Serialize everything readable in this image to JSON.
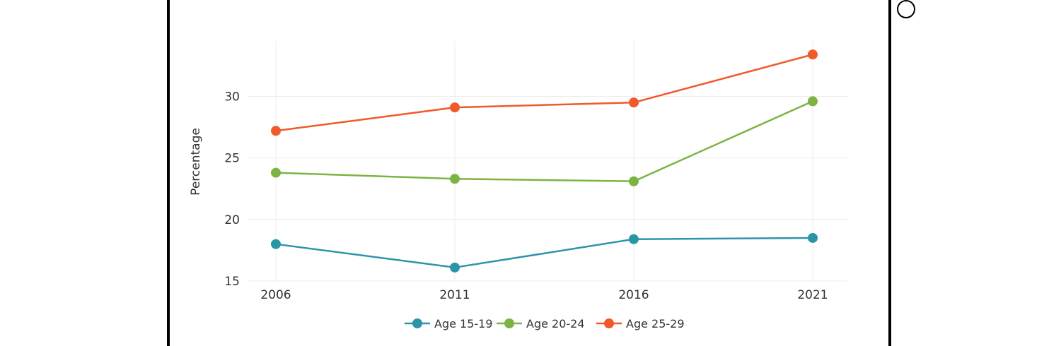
{
  "chart_data": {
    "type": "line",
    "x": [
      2006,
      2011,
      2016,
      2021
    ],
    "x_tick_labels": [
      "2006",
      "2011",
      "2016",
      "2021"
    ],
    "ylabel": "Percentage",
    "xlabel": "",
    "ylim": [
      15,
      34.5
    ],
    "y_ticks": [
      15,
      20,
      25,
      30
    ],
    "y_tick_labels": [
      "15",
      "20",
      "25",
      "30"
    ],
    "grid": true,
    "legend_position": "bottom",
    "series": [
      {
        "name": "Age 15-19",
        "color": "#2b95a8",
        "values": [
          18.0,
          16.1,
          18.4,
          18.5
        ]
      },
      {
        "name": "Age 20-24",
        "color": "#7cb342",
        "values": [
          23.8,
          23.3,
          23.1,
          29.6
        ]
      },
      {
        "name": "Age 25-29",
        "color": "#f05a2a",
        "values": [
          27.2,
          29.1,
          29.5,
          33.4
        ]
      }
    ]
  },
  "ui": {
    "radio_icon": "radio-button-unchecked-icon"
  }
}
